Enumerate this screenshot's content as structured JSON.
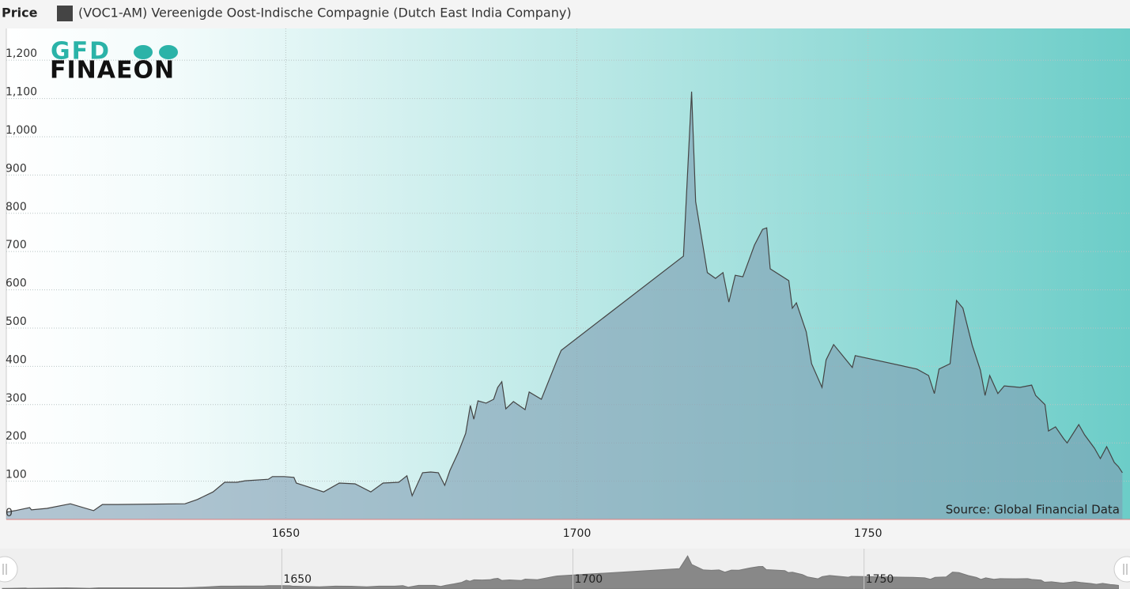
{
  "chart_data": {
    "type": "area",
    "y_label": "Price",
    "logo": [
      "GFD",
      "FINAEON"
    ],
    "source": "Source: Global Financial Data",
    "x": [
      1602,
      1603.5,
      1606,
      1606.3,
      1609,
      1613,
      1617,
      1618.5,
      1621,
      1632.7,
      1634.8,
      1637.5,
      1639.5,
      1641.6,
      1643,
      1647,
      1647.7,
      1649.7,
      1651.4,
      1651.8,
      1656.5,
      1659.2,
      1661.9,
      1664.6,
      1666.7,
      1669.4,
      1670.8,
      1671.7,
      1673.5,
      1674.9,
      1676.2,
      1677.3,
      1678.2,
      1679.6,
      1680.9,
      1681.7,
      1682.3,
      1683,
      1684.4,
      1685.7,
      1686.4,
      1687.1,
      1687.8,
      1689.1,
      1691.1,
      1691.8,
      1693.9,
      1696.6,
      1697.3,
      1718.3,
      1719.7,
      1720.4,
      1722.4,
      1723.8,
      1725.1,
      1726.1,
      1727.2,
      1728.5,
      1729.9,
      1730.5,
      1731.9,
      1732.6,
      1733.2,
      1736.4,
      1737,
      1737.7,
      1739.4,
      1740.3,
      1742.1,
      1742.8,
      1744.1,
      1747.3,
      1747.8,
      1758.4,
      1760.4,
      1761.4,
      1762.2,
      1764.1,
      1765.2,
      1766.3,
      1767.9,
      1769.3,
      1770.1,
      1770.9,
      1772.3,
      1773.4,
      1776.1,
      1778.1,
      1778.8,
      1780.4,
      1781,
      1782.2,
      1783.6,
      1784.2,
      1786.2,
      1787.2,
      1788.9,
      1789.9,
      1791,
      1792.3,
      1793,
      1793.7
    ],
    "series": [
      {
        "name": "(VOC1-AM) Vereenigde Oost-Indische Compagnie (Dutch East India Company)",
        "color": "#444444",
        "area_color": "#7f9cb3",
        "values": [
          19,
          23,
          31,
          25,
          29,
          41,
          23,
          39,
          39,
          41,
          52,
          72,
          97,
          97,
          101,
          105,
          112,
          112,
          110,
          95,
          72,
          95,
          93,
          72,
          95,
          97,
          114,
          62,
          122,
          124,
          122,
          89,
          128,
          174,
          225,
          298,
          262,
          310,
          304,
          314,
          345,
          360,
          289,
          308,
          287,
          333,
          314,
          417,
          442,
          688,
          1118,
          831,
          645,
          630,
          645,
          568,
          638,
          634,
          692,
          717,
          758,
          762,
          655,
          624,
          552,
          566,
          490,
          407,
          345,
          417,
          457,
          397,
          428,
          393,
          376,
          329,
          393,
          407,
          572,
          552,
          455,
          390,
          324,
          376,
          329,
          349,
          345,
          351,
          324,
          300,
          231,
          242,
          211,
          200,
          248,
          221,
          186,
          159,
          190,
          149,
          138,
          122
        ]
      }
    ],
    "xlim": [
      1602,
      1795
    ],
    "ylim": [
      0,
      1283
    ],
    "xticks": [
      1650,
      1700,
      1750
    ],
    "yticks": [
      0,
      100,
      200,
      300,
      400,
      500,
      600,
      700,
      800,
      900,
      {
        "value": 1000,
        "label": "1,000"
      },
      {
        "value": 1100,
        "label": "1,100"
      },
      {
        "value": 1200,
        "label": "1,200"
      }
    ],
    "grid": true
  }
}
